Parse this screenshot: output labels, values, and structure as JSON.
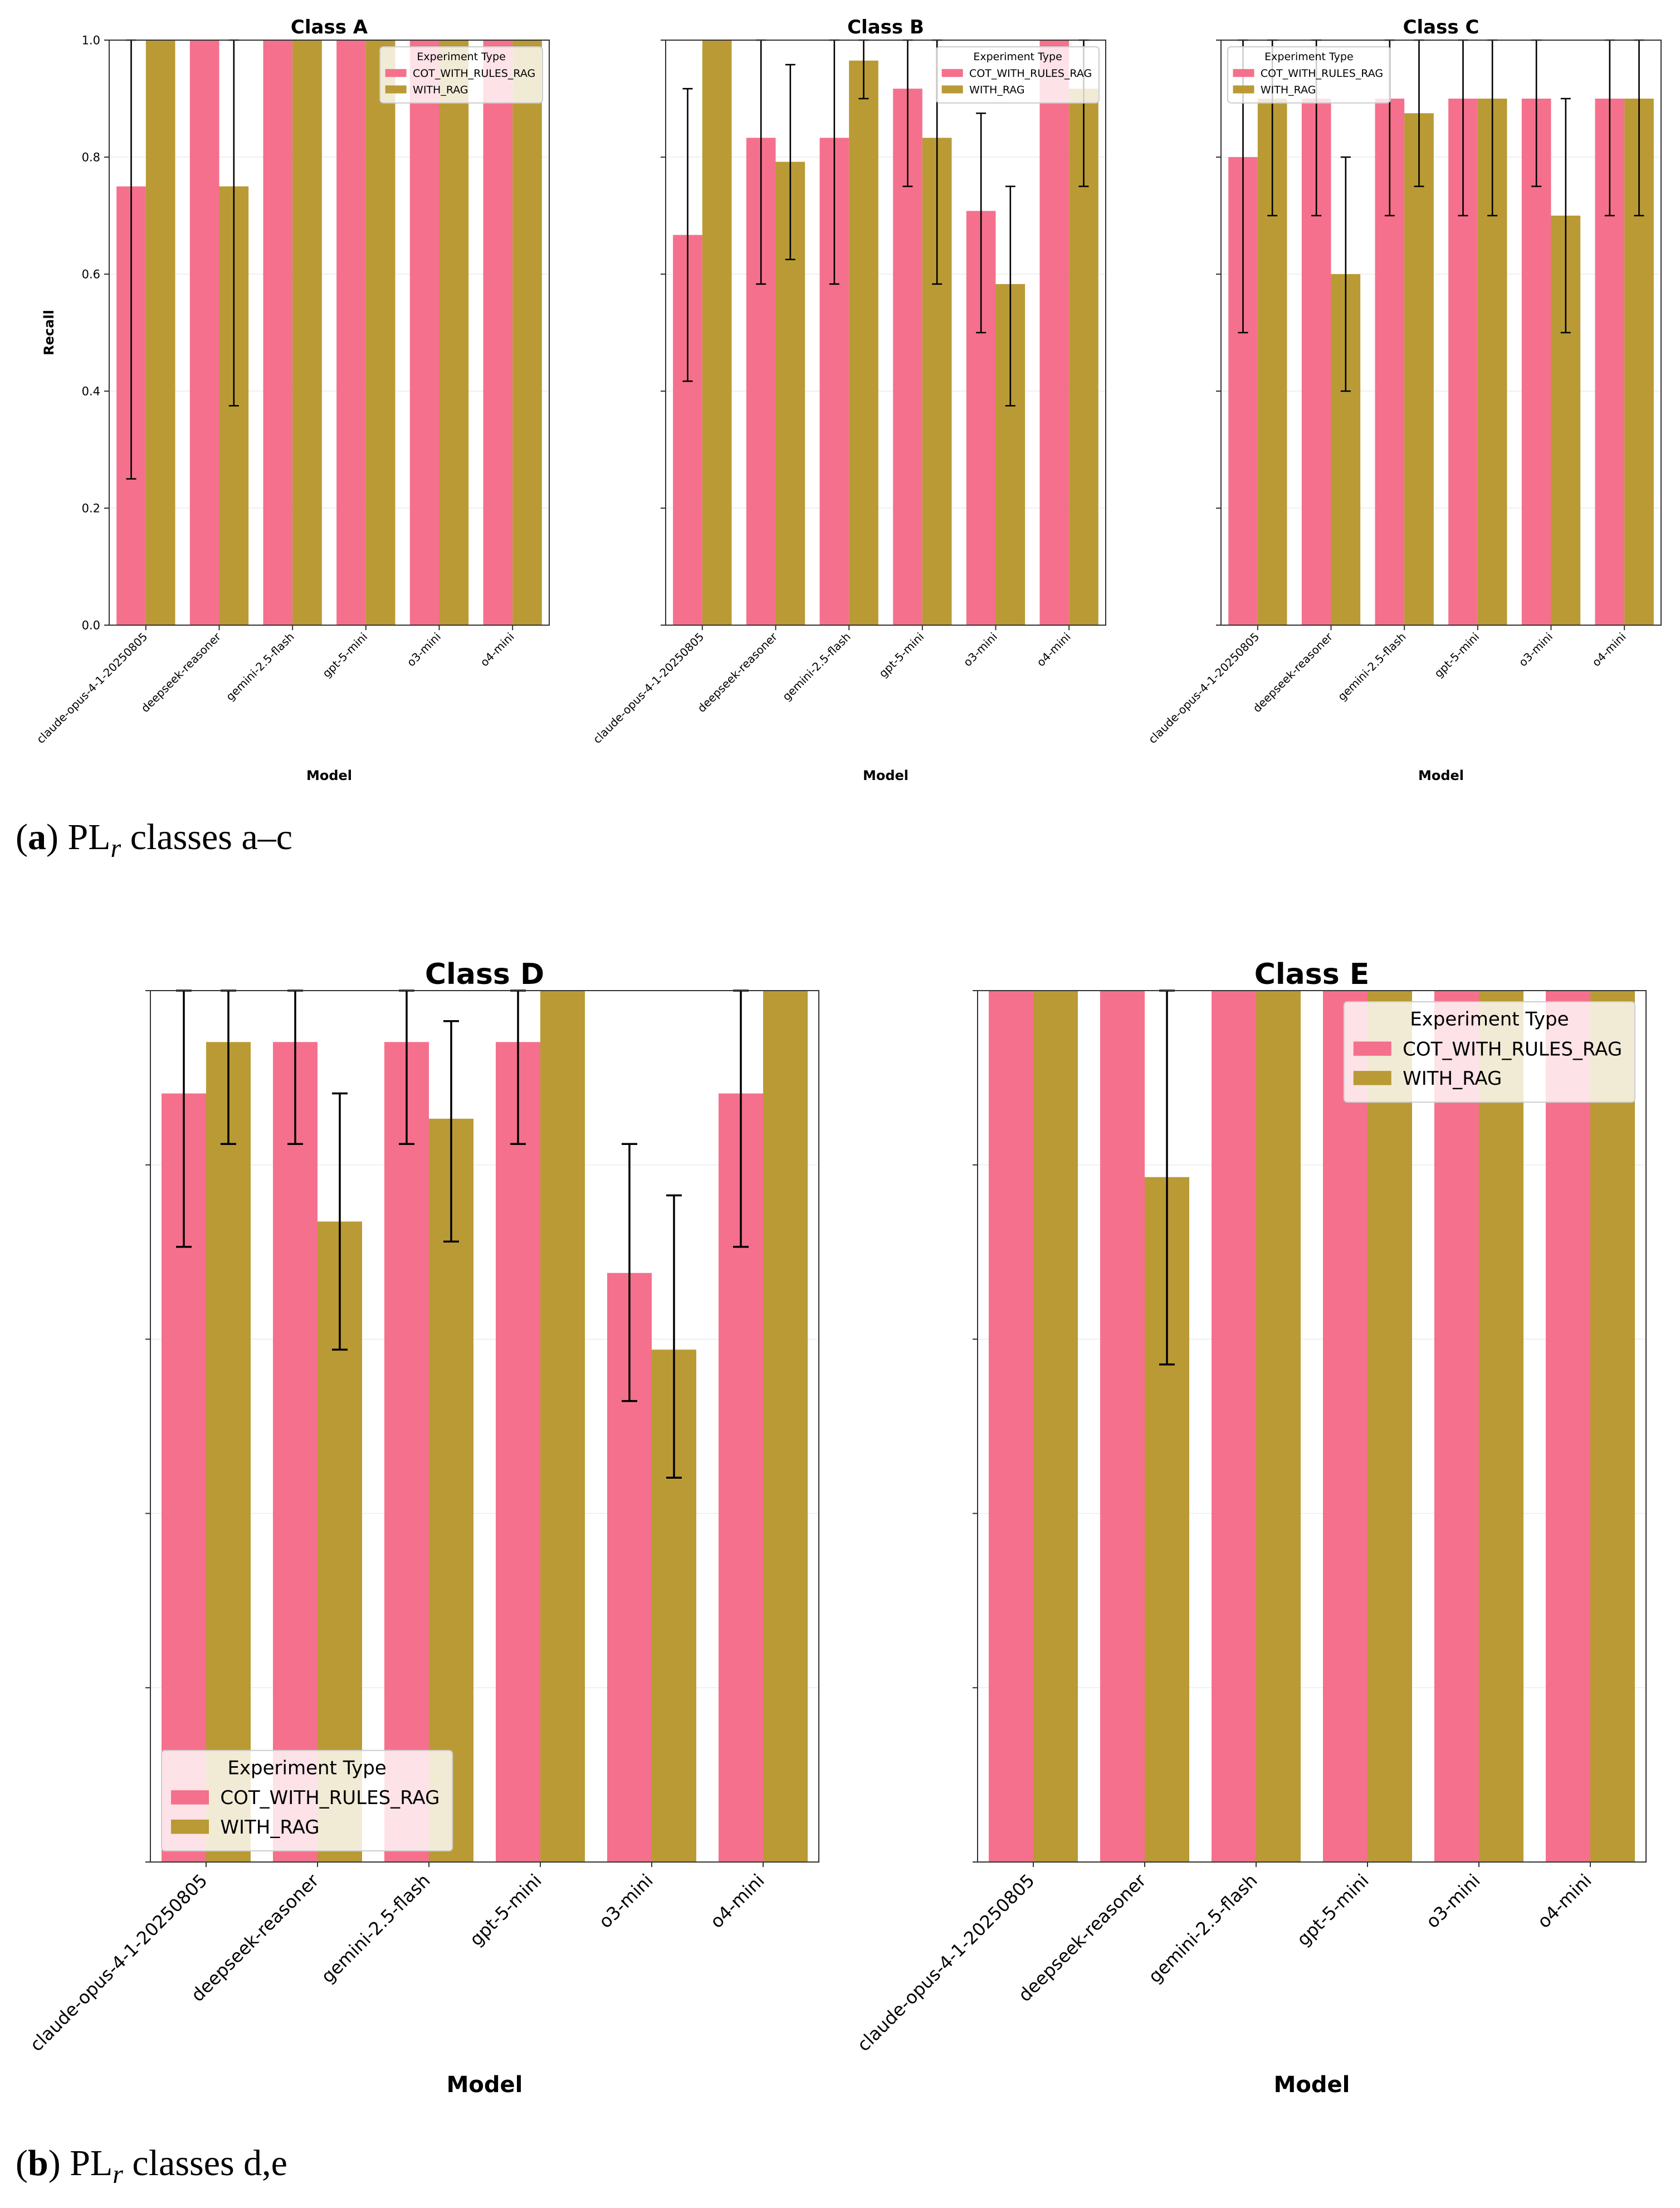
{
  "figure": {
    "shared": {
      "models": [
        "claude-opus-4-1-20250805",
        "deepseek-reasoner",
        "gemini-2.5-flash",
        "gpt-5-mini",
        "o3-mini",
        "o4-mini"
      ],
      "series_names": [
        "COT_WITH_RULES_RAG",
        "WITH_RAG"
      ],
      "series_colors": [
        "#f5708c",
        "#b99a35"
      ],
      "legend_title": "Experiment Type",
      "xlabel": "Model",
      "ylabel": "Recall",
      "yticks": [
        "0.0",
        "0.2",
        "0.4",
        "0.6",
        "0.8",
        "1.0"
      ]
    },
    "captions": {
      "a": {
        "label": "a",
        "prefix": "PL",
        "sub": "r",
        "text": "classes a–c"
      },
      "b": {
        "label": "b",
        "prefix": "PL",
        "sub": "r",
        "text": "classes d,e"
      }
    }
  },
  "chart_data": [
    {
      "type": "bar",
      "title": "Class A",
      "xlabel": "Model",
      "ylabel": "Recall",
      "ylim": [
        0,
        1.0
      ],
      "categories": [
        "claude-opus-4-1-20250805",
        "deepseek-reasoner",
        "gemini-2.5-flash",
        "gpt-5-mini",
        "o3-mini",
        "o4-mini"
      ],
      "legend_title": "Experiment Type",
      "legend_position": "upper-right",
      "series": [
        {
          "name": "COT_WITH_RULES_RAG",
          "values": [
            0.75,
            1.0,
            1.0,
            1.0,
            1.0,
            1.0
          ],
          "err_low": [
            0.25,
            null,
            null,
            null,
            null,
            null
          ],
          "err_high": [
            1.0,
            null,
            null,
            null,
            null,
            null
          ]
        },
        {
          "name": "WITH_RAG",
          "values": [
            1.0,
            0.75,
            1.0,
            1.0,
            1.0,
            1.0
          ],
          "err_low": [
            null,
            0.375,
            null,
            null,
            null,
            null
          ],
          "err_high": [
            null,
            1.0,
            null,
            null,
            null,
            null
          ]
        }
      ]
    },
    {
      "type": "bar",
      "title": "Class B",
      "xlabel": "Model",
      "ylabel": "",
      "ylim": [
        0,
        1.0
      ],
      "categories": [
        "claude-opus-4-1-20250805",
        "deepseek-reasoner",
        "gemini-2.5-flash",
        "gpt-5-mini",
        "o3-mini",
        "o4-mini"
      ],
      "legend_title": "Experiment Type",
      "legend_position": "upper-right",
      "series": [
        {
          "name": "COT_WITH_RULES_RAG",
          "values": [
            0.667,
            0.833,
            0.833,
            0.917,
            0.708,
            1.0
          ],
          "err_low": [
            0.417,
            0.583,
            0.583,
            0.75,
            0.5,
            null
          ],
          "err_high": [
            0.917,
            1.0,
            1.0,
            1.0,
            0.875,
            null
          ]
        },
        {
          "name": "WITH_RAG",
          "values": [
            1.0,
            0.792,
            0.965,
            0.833,
            0.583,
            0.917
          ],
          "err_low": [
            null,
            0.625,
            0.9,
            0.583,
            0.375,
            0.75
          ],
          "err_high": [
            null,
            0.958,
            1.0,
            1.0,
            0.75,
            1.0
          ]
        }
      ]
    },
    {
      "type": "bar",
      "title": "Class C",
      "xlabel": "Model",
      "ylabel": "",
      "ylim": [
        0,
        1.0
      ],
      "categories": [
        "claude-opus-4-1-20250805",
        "deepseek-reasoner",
        "gemini-2.5-flash",
        "gpt-5-mini",
        "o3-mini",
        "o4-mini"
      ],
      "legend_title": "Experiment Type",
      "legend_position": "upper-left",
      "series": [
        {
          "name": "COT_WITH_RULES_RAG",
          "values": [
            0.8,
            0.9,
            0.9,
            0.9,
            0.9,
            0.9
          ],
          "err_low": [
            0.5,
            0.7,
            0.7,
            0.7,
            0.75,
            0.7
          ],
          "err_high": [
            1.0,
            1.0,
            1.0,
            1.0,
            1.0,
            1.0
          ]
        },
        {
          "name": "WITH_RAG",
          "values": [
            0.9,
            0.6,
            0.875,
            0.9,
            0.7,
            0.9
          ],
          "err_low": [
            0.7,
            0.4,
            0.75,
            0.7,
            0.5,
            0.7
          ],
          "err_high": [
            1.0,
            0.8,
            1.0,
            1.0,
            0.9,
            1.0
          ]
        }
      ]
    },
    {
      "type": "bar",
      "title": "Class D",
      "xlabel": "Model",
      "ylabel": "",
      "ylim": [
        0,
        1.0
      ],
      "categories": [
        "claude-opus-4-1-20250805",
        "deepseek-reasoner",
        "gemini-2.5-flash",
        "gpt-5-mini",
        "o3-mini",
        "o4-mini"
      ],
      "legend_title": "Experiment Type",
      "legend_position": "lower-left",
      "series": [
        {
          "name": "COT_WITH_RULES_RAG",
          "values": [
            0.882,
            0.941,
            0.941,
            0.941,
            0.676,
            0.882
          ],
          "err_low": [
            0.706,
            0.824,
            0.824,
            0.824,
            0.529,
            0.706
          ],
          "err_high": [
            1.0,
            1.0,
            1.0,
            1.0,
            0.824,
            1.0
          ]
        },
        {
          "name": "WITH_RAG",
          "values": [
            0.941,
            0.735,
            0.853,
            1.0,
            0.588,
            1.0
          ],
          "err_low": [
            0.824,
            0.588,
            0.712,
            null,
            0.441,
            null
          ],
          "err_high": [
            1.0,
            0.882,
            0.965,
            null,
            0.765,
            null
          ]
        }
      ]
    },
    {
      "type": "bar",
      "title": "Class E",
      "xlabel": "Model",
      "ylabel": "",
      "ylim": [
        0,
        1.0
      ],
      "categories": [
        "claude-opus-4-1-20250805",
        "deepseek-reasoner",
        "gemini-2.5-flash",
        "gpt-5-mini",
        "o3-mini",
        "o4-mini"
      ],
      "legend_title": "Experiment Type",
      "legend_position": "upper-right",
      "series": [
        {
          "name": "COT_WITH_RULES_RAG",
          "values": [
            1.0,
            1.0,
            1.0,
            1.0,
            1.0,
            1.0
          ],
          "err_low": [
            null,
            null,
            null,
            null,
            null,
            null
          ],
          "err_high": [
            null,
            null,
            null,
            null,
            null,
            null
          ]
        },
        {
          "name": "WITH_RAG",
          "values": [
            1.0,
            0.786,
            1.0,
            1.0,
            1.0,
            1.0
          ],
          "err_low": [
            null,
            0.571,
            null,
            null,
            null,
            null
          ],
          "err_high": [
            null,
            1.0,
            null,
            null,
            null,
            null
          ]
        }
      ]
    }
  ]
}
